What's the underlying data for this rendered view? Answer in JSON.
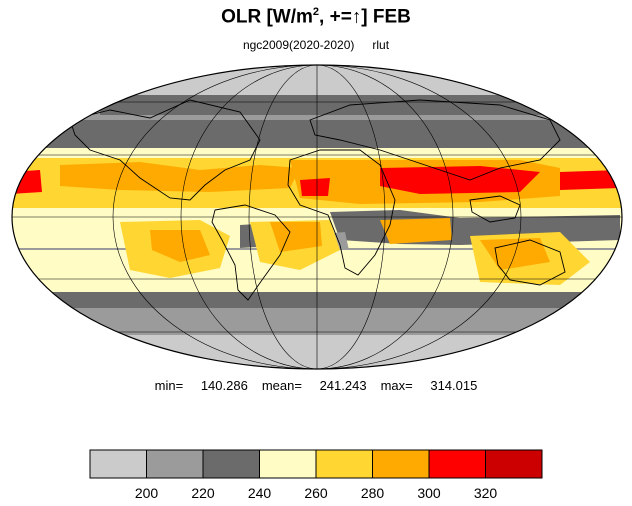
{
  "title": {
    "main": "OLR [W/m",
    "sup": "2",
    "tail": ", +=",
    "arrow": "↑",
    "end": "] FEB"
  },
  "subtitle": {
    "run": "ngc2009(2020-2020)",
    "var": "rlut"
  },
  "stats": {
    "min_label": "min=",
    "min": "140.286",
    "mean_label": "mean=",
    "mean": "241.243",
    "max_label": "max=",
    "max": "314.015"
  },
  "colorbar": {
    "levels": [
      200,
      220,
      240,
      260,
      280,
      300,
      320
    ],
    "level_labels": [
      "200",
      "220",
      "240",
      "260",
      "280",
      "300",
      "320"
    ],
    "colors": [
      "#cbcbcb",
      "#9b9b9b",
      "#6b6b6b",
      "#fffcc6",
      "#ffd632",
      "#ffaa00",
      "#ff0000",
      "#cc0000"
    ]
  },
  "map": {
    "projection": "Mollweide",
    "ocean_color": "#a9a9a9",
    "outline_color": "#000000"
  }
}
